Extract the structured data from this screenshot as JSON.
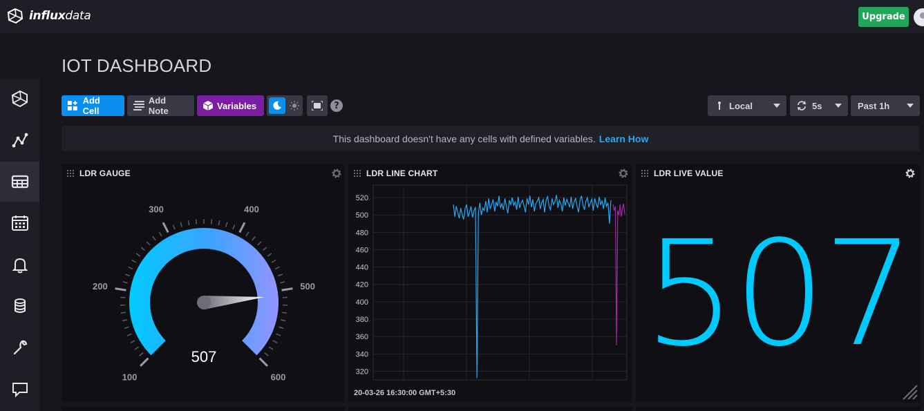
{
  "app": {
    "brand_bold": "influx",
    "brand_light": "data",
    "upgrade_label": "Upgrade"
  },
  "sidebar": {
    "items": [
      {
        "icon": "influx-logo-icon"
      },
      {
        "icon": "data-explorer-icon"
      },
      {
        "icon": "dashboards-icon",
        "active": true
      },
      {
        "icon": "tasks-calendar-icon"
      },
      {
        "icon": "alerts-bell-icon"
      },
      {
        "icon": "load-data-icon"
      },
      {
        "icon": "settings-wrench-icon"
      },
      {
        "icon": "feedback-icon"
      }
    ]
  },
  "page": {
    "title": "IOT DASHBOARD"
  },
  "toolbar": {
    "add_cell": "Add Cell",
    "add_note": "Add Note",
    "variables": "Variables",
    "timezone": "Local",
    "refresh": "5s",
    "range": "Past 1h",
    "help": "?"
  },
  "banner": {
    "text": "This dashboard doesn't have any cells with defined variables.",
    "link": "Learn How"
  },
  "cells": {
    "gauge": {
      "title": "LDR GAUGE",
      "value": 507,
      "value_label": "507",
      "min": 100,
      "max": 600,
      "tick_labels": [
        "100",
        "200",
        "300",
        "400",
        "500",
        "600"
      ]
    },
    "line": {
      "title": "LDR LINE CHART",
      "timestamp": "20-03-26 16:30:00 GMT+5:30"
    },
    "live": {
      "title": "LDR LIVE VALUE",
      "value": "507"
    }
  },
  "colors": {
    "accent_blue": "#0a8ef0",
    "series_cyan": "#22adf6",
    "series_magenta": "#a626a4",
    "live_value": "#00c9ff",
    "upgrade_green": "#22a55a",
    "variables_purple": "#7b1fa2"
  },
  "chart_data": {
    "type": "line",
    "title": "LDR LINE CHART",
    "xlabel": "20-03-26 16:30:00 GMT+5:30",
    "ylabel": "",
    "ylim": [
      310,
      528
    ],
    "yticks": [
      "520",
      "500",
      "480",
      "460",
      "440",
      "420",
      "400",
      "380",
      "360",
      "340",
      "320"
    ],
    "grid": true,
    "series": [
      {
        "color": "#22adf6",
        "values": [
          512,
          498,
          510,
          503,
          496,
          508,
          500,
          495,
          507,
          512,
          498,
          503,
          510,
          497,
          505,
          509,
          312,
          502,
          514,
          500,
          508,
          505,
          516,
          503,
          519,
          507,
          512,
          518,
          504,
          515,
          510,
          522,
          508,
          513,
          506,
          519,
          510,
          502,
          517,
          512,
          520,
          511,
          515,
          506,
          521,
          508,
          514,
          517,
          510,
          503,
          519,
          512,
          522,
          509,
          518,
          504,
          513,
          516,
          520,
          507,
          514,
          518,
          503,
          517,
          521,
          510,
          506,
          519,
          512,
          515,
          523,
          508,
          517,
          513,
          504,
          520,
          511,
          518,
          514,
          509,
          521,
          507,
          515,
          519,
          510,
          503,
          517,
          522,
          512,
          506,
          516,
          520,
          509,
          514,
          518,
          505,
          519,
          513,
          508,
          521,
          512,
          516,
          507,
          520,
          510,
          514,
          490,
          517
        ]
      },
      {
        "color": "#a626a4",
        "values": [
          512,
          505,
          510,
          350,
          505,
          500,
          512,
          498,
          507,
          513,
          501
        ]
      }
    ]
  }
}
